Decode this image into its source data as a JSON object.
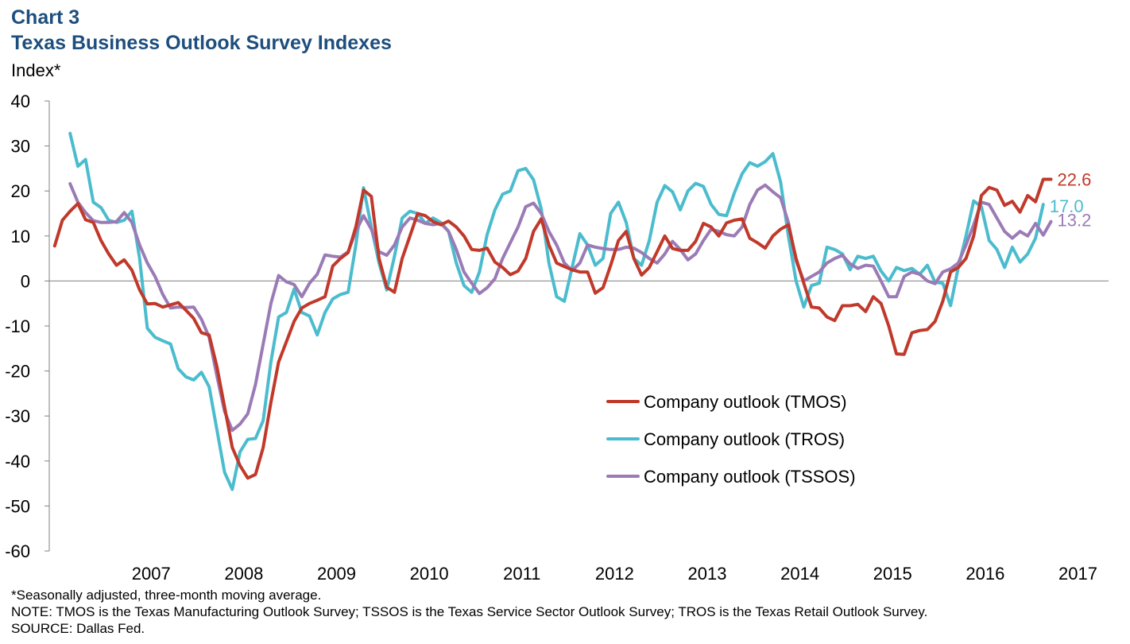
{
  "header": {
    "chart_number": "Chart 3",
    "title": "Texas Business Outlook Survey Indexes",
    "y_axis_label": "Index*"
  },
  "notes": {
    "line1": "*Seasonally adjusted, three-month moving average.",
    "line2": "NOTE: TMOS is the Texas Manufacturing  Outlook Survey; TSSOS is the Texas Service Sector Outlook Survey; TROS is the Texas Retail Outlook Survey.",
    "line3": "SOURCE:  Dallas Fed."
  },
  "chart_data": {
    "type": "line",
    "title": "Texas Business Outlook Survey Indexes",
    "ylabel": "Index*",
    "xlabel": "",
    "ylim": [
      -60,
      40
    ],
    "yticks": [
      40,
      30,
      20,
      10,
      0,
      -10,
      -20,
      -30,
      -40,
      -50,
      -60
    ],
    "x_labels": [
      "2007",
      "2008",
      "2009",
      "2010",
      "2011",
      "2012",
      "2013",
      "2014",
      "2015",
      "2016",
      "2017"
    ],
    "x_start": "2006-06",
    "x_range": [
      2006.4,
      2017.83
    ],
    "legend_position": "center-right",
    "grid": false,
    "series": [
      {
        "name": "Company outlook (TMOS)",
        "color": "#c0392b",
        "end_label": "22.6",
        "values": [
          7.8,
          13.5,
          15.5,
          17.2,
          13.6,
          13.0,
          9.0,
          6.0,
          3.5,
          4.7,
          2.4,
          -2.0,
          -5.1,
          -5.0,
          -5.8,
          -5.3,
          -4.8,
          -6.5,
          -8.3,
          -11.5,
          -12.0,
          -19.0,
          -28.0,
          -37.0,
          -41.0,
          -43.8,
          -43.0,
          -37.0,
          -27.0,
          -18.0,
          -13.5,
          -9.0,
          -6.0,
          -5.0,
          -4.3,
          -3.5,
          3.3,
          5.0,
          6.3,
          12.0,
          20.2,
          18.8,
          5.0,
          -1.4,
          -2.5,
          5.0,
          10.0,
          15.0,
          14.5,
          13.2,
          12.5,
          13.3,
          12.0,
          10.0,
          7.0,
          6.8,
          7.3,
          4.2,
          3.0,
          1.4,
          2.2,
          5.0,
          11.0,
          13.8,
          8.0,
          4.0,
          3.2,
          2.5,
          2.0,
          2.0,
          -2.7,
          -1.5,
          3.5,
          9.0,
          11.0,
          5.0,
          1.3,
          3.0,
          6.5,
          10.0,
          7.2,
          6.8,
          6.8,
          8.8,
          12.8,
          12.0,
          10.0,
          12.9,
          13.5,
          13.8,
          9.5,
          8.5,
          7.3,
          10.0,
          11.5,
          12.5,
          5.0,
          -0.5,
          -5.8,
          -6.0,
          -8.0,
          -8.8,
          -5.5,
          -5.5,
          -5.2,
          -6.8,
          -3.5,
          -5.0,
          -10.0,
          -16.2,
          -16.3,
          -11.5,
          -11.0,
          -10.8,
          -9.0,
          -4.5,
          2.0,
          3.0,
          5.0,
          10.0,
          19.0,
          20.8,
          20.2,
          16.8,
          17.7,
          15.3,
          19.0,
          17.6,
          22.6,
          22.6
        ]
      },
      {
        "name": "Company outlook (TROS)",
        "color": "#4bbcce",
        "end_label": "17.0",
        "values": [
          null,
          null,
          32.8,
          25.5,
          27.0,
          17.5,
          16.3,
          13.5,
          13.0,
          13.5,
          15.5,
          5.0,
          -10.5,
          -12.5,
          -13.3,
          -14.0,
          -19.5,
          -21.3,
          -22.0,
          -20.3,
          -23.5,
          -33.0,
          -42.5,
          -46.3,
          -38.0,
          -35.2,
          -35.0,
          -31.0,
          -18.0,
          -8.0,
          -7.0,
          -1.8,
          -7.0,
          -7.8,
          -12.0,
          -7.0,
          -4.0,
          -3.0,
          -2.5,
          8.0,
          20.7,
          12.0,
          4.0,
          -2.0,
          5.5,
          14.0,
          15.5,
          15.0,
          12.8,
          14.0,
          13.0,
          11.0,
          4.0,
          -1.0,
          -2.5,
          2.0,
          10.3,
          15.8,
          19.3,
          20.0,
          24.5,
          25.0,
          22.5,
          16.0,
          4.0,
          -3.5,
          -4.5,
          3.0,
          10.5,
          8.0,
          3.5,
          5.0,
          15.0,
          17.5,
          13.0,
          5.0,
          3.5,
          9.0,
          17.5,
          21.2,
          19.8,
          15.8,
          20.0,
          21.7,
          21.0,
          17.0,
          14.8,
          14.5,
          19.5,
          23.8,
          26.3,
          25.5,
          26.5,
          28.3,
          22.0,
          10.0,
          0.0,
          -5.8,
          -1.0,
          -0.5,
          7.5,
          7.0,
          6.0,
          2.5,
          5.5,
          5.0,
          5.5,
          2.2,
          0.0,
          3.0,
          2.3,
          2.8,
          1.5,
          3.5,
          -0.3,
          -0.5,
          -5.5,
          3.0,
          10.0,
          17.8,
          16.5,
          9.0,
          7.0,
          3.0,
          7.5,
          4.2,
          6.0,
          9.5,
          17.0
        ]
      },
      {
        "name": "Company outlook (TSSOS)",
        "color": "#9b7bb5",
        "end_label": "13.2",
        "values": [
          null,
          null,
          21.6,
          17.5,
          15.2,
          13.4,
          13.0,
          13.0,
          13.2,
          15.2,
          13.0,
          8.0,
          4.0,
          1.0,
          -3.0,
          -6.0,
          -5.8,
          -5.9,
          -5.8,
          -8.5,
          -12.5,
          -21.0,
          -29.0,
          -33.2,
          -31.8,
          -29.5,
          -23.0,
          -14.0,
          -5.0,
          1.2,
          -0.2,
          -0.8,
          -3.5,
          -0.5,
          1.5,
          5.8,
          5.5,
          5.3,
          6.5,
          11.0,
          14.5,
          11.5,
          6.5,
          5.7,
          8.0,
          12.0,
          14.0,
          13.5,
          12.8,
          12.5,
          12.8,
          11.0,
          7.0,
          2.0,
          -0.5,
          -2.8,
          -1.5,
          0.5,
          5.0,
          8.5,
          12.0,
          16.5,
          17.3,
          15.0,
          11.0,
          8.0,
          4.0,
          2.3,
          4.0,
          8.0,
          7.5,
          7.2,
          7.0,
          7.0,
          7.5,
          7.3,
          6.3,
          5.0,
          4.0,
          6.0,
          8.8,
          7.0,
          4.7,
          6.0,
          9.0,
          11.5,
          11.0,
          10.3,
          10.0,
          12.0,
          17.0,
          20.2,
          21.3,
          19.8,
          18.5,
          13.0,
          4.5,
          0.0,
          1.0,
          2.0,
          4.0,
          5.0,
          5.7,
          3.8,
          2.8,
          3.5,
          3.3,
          0.0,
          -3.5,
          -3.5,
          1.0,
          2.0,
          1.5,
          0.0,
          -0.6,
          2.0,
          2.7,
          4.0,
          8.0,
          12.5,
          17.5,
          17.0,
          14.0,
          11.0,
          9.5,
          11.0,
          10.0,
          12.8,
          10.2,
          13.2
        ]
      }
    ]
  }
}
